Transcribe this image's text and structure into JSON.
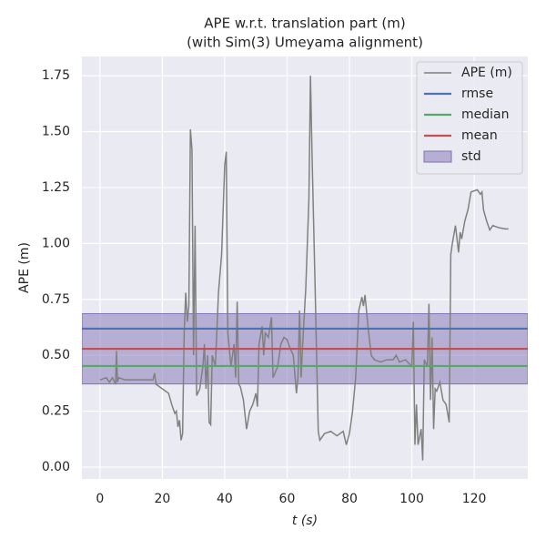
{
  "chart_data": {
    "type": "line",
    "title": "APE w.r.t. translation part (m)",
    "subtitle": "(with Sim(3) Umeyama alignment)",
    "x_label": "t (s)",
    "y_label": "APE (m)",
    "xlim": [
      -5.8,
      137.2
    ],
    "ylim": [
      -0.053,
      1.836
    ],
    "xticks": [
      0,
      20,
      40,
      60,
      80,
      100,
      120
    ],
    "yticks": [
      {
        "value": 0,
        "label": "0.00"
      },
      {
        "value": 0.25,
        "label": "0.25"
      },
      {
        "value": 0.5,
        "label": "0.50"
      },
      {
        "value": 0.75,
        "label": "0.75"
      },
      {
        "value": 1,
        "label": "1.00"
      },
      {
        "value": 1.25,
        "label": "1.25"
      },
      {
        "value": 1.5,
        "label": "1.50"
      },
      {
        "value": 1.75,
        "label": "1.75"
      }
    ],
    "grid": true,
    "legend": "upper right",
    "series": [
      {
        "name": "APE (m)",
        "color": "#808080",
        "x": [
          0,
          2,
          3,
          4,
          5,
          5.3,
          5.6,
          6,
          8,
          12,
          17,
          17.5,
          18,
          20,
          22,
          23,
          24,
          24.5,
          25,
          25.5,
          26,
          26.5,
          27,
          27.5,
          28,
          28.5,
          29,
          29.5,
          30,
          30.5,
          31,
          32,
          33,
          33.5,
          34,
          34.5,
          35,
          35.5,
          36,
          37,
          38,
          39,
          40,
          40.5,
          41,
          42,
          43,
          43.5,
          44,
          44.5,
          45,
          46,
          47,
          48,
          49,
          50,
          50.5,
          51,
          52,
          52.5,
          53,
          54,
          55,
          55.5,
          57,
          58,
          59,
          60,
          61,
          62,
          63,
          63.5,
          64,
          64.5,
          65,
          66,
          67,
          67.5,
          68,
          69,
          70,
          70.5,
          72,
          74,
          76,
          78,
          79,
          80,
          81,
          82,
          83,
          84,
          84.5,
          85,
          86,
          87,
          88,
          90,
          92,
          94,
          95,
          96,
          98,
          100,
          100.5,
          101,
          101.5,
          102,
          103,
          103.5,
          104,
          105,
          105.5,
          106,
          106.5,
          107,
          107.5,
          108,
          109,
          110,
          111,
          112,
          112.5,
          113,
          114,
          115,
          115.5,
          116,
          117,
          118,
          119,
          121,
          122,
          122.5,
          123,
          124,
          125,
          126,
          128,
          130,
          131
        ],
        "values": [
          0.39,
          0.4,
          0.38,
          0.4,
          0.37,
          0.52,
          0.38,
          0.4,
          0.39,
          0.39,
          0.39,
          0.42,
          0.37,
          0.35,
          0.33,
          0.28,
          0.24,
          0.25,
          0.18,
          0.21,
          0.12,
          0.15,
          0.6,
          0.78,
          0.65,
          0.72,
          1.51,
          1.42,
          0.5,
          1.08,
          0.32,
          0.35,
          0.45,
          0.55,
          0.35,
          0.5,
          0.2,
          0.19,
          0.5,
          0.45,
          0.78,
          0.95,
          1.35,
          1.41,
          0.6,
          0.45,
          0.55,
          0.4,
          0.74,
          0.37,
          0.36,
          0.3,
          0.17,
          0.25,
          0.28,
          0.33,
          0.27,
          0.55,
          0.63,
          0.5,
          0.6,
          0.58,
          0.67,
          0.4,
          0.45,
          0.55,
          0.58,
          0.57,
          0.53,
          0.5,
          0.33,
          0.4,
          0.7,
          0.4,
          0.55,
          0.8,
          1.2,
          1.75,
          1.4,
          0.8,
          0.16,
          0.12,
          0.15,
          0.16,
          0.14,
          0.16,
          0.1,
          0.15,
          0.25,
          0.4,
          0.7,
          0.76,
          0.72,
          0.77,
          0.62,
          0.5,
          0.48,
          0.47,
          0.48,
          0.48,
          0.5,
          0.47,
          0.48,
          0.45,
          0.65,
          0.1,
          0.28,
          0.1,
          0.17,
          0.03,
          0.48,
          0.45,
          0.73,
          0.3,
          0.58,
          0.17,
          0.35,
          0.34,
          0.38,
          0.3,
          0.28,
          0.2,
          0.95,
          1.0,
          1.08,
          0.96,
          1.05,
          1.02,
          1.1,
          1.15,
          1.23,
          1.24,
          1.22,
          1.23,
          1.15,
          1.1,
          1.06,
          1.08,
          1.07,
          1.065,
          1.065
        ]
      }
    ],
    "stats": [
      {
        "name": "rmse",
        "color": "#4c72b0",
        "value": 0.619
      },
      {
        "name": "median",
        "color": "#55a868",
        "value": 0.452
      },
      {
        "name": "mean",
        "color": "#c44e52",
        "value": 0.529
      }
    ],
    "std": {
      "name": "std",
      "color": "#8172b3",
      "value": 0.157
    }
  }
}
